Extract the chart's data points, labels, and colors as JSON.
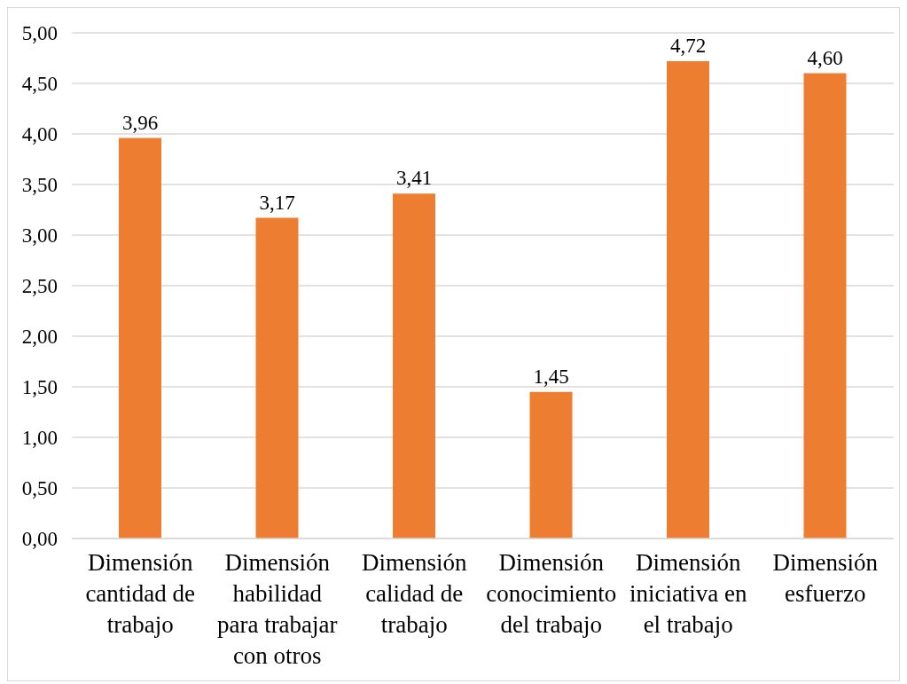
{
  "chart_data": {
    "type": "bar",
    "categories": [
      "Dimensión cantidad de trabajo",
      "Dimensión habilidad para trabajar con otros",
      "Dimensión calidad de trabajo",
      "Dimensión conocimiento del trabajo",
      "Dimensión iniciativa en el trabajo",
      "Dimensión esfuerzo"
    ],
    "values": [
      3.96,
      3.17,
      3.41,
      1.45,
      4.72,
      4.6
    ],
    "value_labels": [
      "3,96",
      "3,17",
      "3,41",
      "1,45",
      "4,72",
      "4,60"
    ],
    "color": "#ed7d31",
    "ylim": [
      0,
      5
    ],
    "yticks": [
      {
        "value": 0,
        "label": "0,00"
      },
      {
        "value": 0.5,
        "label": "0,50"
      },
      {
        "value": 1,
        "label": "1,00"
      },
      {
        "value": 1.5,
        "label": "1,50"
      },
      {
        "value": 2,
        "label": "2,00"
      },
      {
        "value": 2.5,
        "label": "2,50"
      },
      {
        "value": 3,
        "label": "3,00"
      },
      {
        "value": 3.5,
        "label": "3,50"
      },
      {
        "value": 4,
        "label": "4,00"
      },
      {
        "value": 4.5,
        "label": "4,50"
      },
      {
        "value": 5,
        "label": "5,00"
      }
    ],
    "grid": "y"
  }
}
